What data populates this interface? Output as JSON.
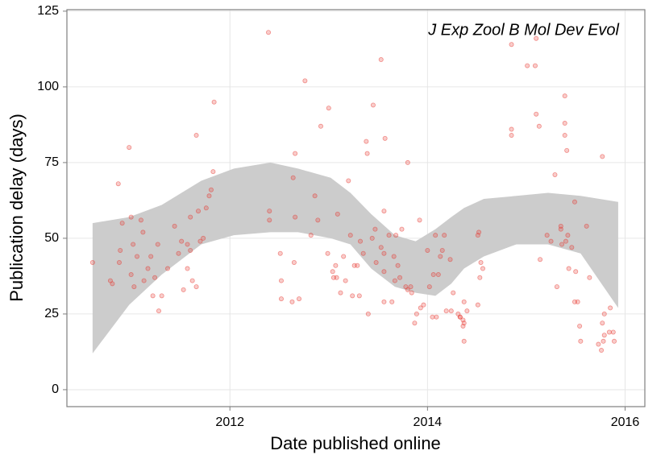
{
  "chart_data": {
    "type": "scatter",
    "annotation": "J Exp Zool B Mol Dev Evol",
    "x_label": "Date published online",
    "y_label": "Publication delay (days)",
    "xlim": [
      2010.35,
      2016.2
    ],
    "ylim": [
      -5.6,
      125.5
    ],
    "xticks": [
      2012,
      2014,
      2016
    ],
    "yticks": [
      0,
      25,
      50,
      75,
      100,
      125
    ],
    "grid": true,
    "color": "#e8342c",
    "point_alpha": 0.25,
    "x": [
      2010.61,
      2010.79,
      2010.81,
      2010.87,
      2010.89,
      2010.91,
      2010.88,
      2010.98,
      2011.0,
      2011.02,
      2011.0,
      2011.03,
      2011.06,
      2011.1,
      2011.12,
      2011.13,
      2011.17,
      2011.2,
      2011.22,
      2011.24,
      2011.27,
      2011.28,
      2011.31,
      2011.37,
      2011.44,
      2011.48,
      2011.51,
      2011.53,
      2011.57,
      2011.57,
      2011.6,
      2011.6,
      2011.62,
      2011.66,
      2011.66,
      2011.68,
      2011.7,
      2011.73,
      2011.76,
      2011.79,
      2011.81,
      2011.83,
      2011.84,
      2012.39,
      2012.4,
      2012.4,
      2012.51,
      2012.52,
      2012.52,
      2012.64,
      2012.65,
      2012.66,
      2012.66,
      2012.63,
      2012.7,
      2012.76,
      2012.82,
      2012.86,
      2012.89,
      2012.92,
      2012.99,
      2013.0,
      2013.04,
      2013.05,
      2013.07,
      2013.08,
      2013.09,
      2013.12,
      2013.15,
      2013.17,
      2013.2,
      2013.22,
      2013.24,
      2013.26,
      2013.29,
      2013.31,
      2013.32,
      2013.35,
      2013.38,
      2013.39,
      2013.4,
      2013.44,
      2013.45,
      2013.47,
      2013.48,
      2013.53,
      2013.53,
      2013.56,
      2013.56,
      2013.57,
      2013.56,
      2013.56,
      2013.61,
      2013.64,
      2013.66,
      2013.67,
      2013.68,
      2013.7,
      2013.72,
      2013.74,
      2013.78,
      2013.8,
      2013.8,
      2013.83,
      2013.84,
      2013.87,
      2013.89,
      2013.92,
      2013.93,
      2013.96,
      2014.0,
      2014.02,
      2014.05,
      2014.06,
      2014.08,
      2014.09,
      2014.11,
      2014.13,
      2014.15,
      2014.17,
      2014.19,
      2014.23,
      2014.24,
      2014.26,
      2014.31,
      2014.33,
      2014.33,
      2014.36,
      2014.36,
      2014.37,
      2014.37,
      2014.37,
      2014.4,
      2014.51,
      2014.51,
      2014.52,
      2014.53,
      2014.54,
      2014.56,
      2014.85,
      2014.85,
      2014.85,
      2015.01,
      2015.09,
      2015.1,
      2015.1,
      2015.13,
      2015.14,
      2015.21,
      2015.25,
      2015.29,
      2015.31,
      2015.35,
      2015.35,
      2015.36,
      2015.39,
      2015.39,
      2015.39,
      2015.41,
      2015.4,
      2015.42,
      2015.43,
      2015.46,
      2015.49,
      2015.49,
      2015.5,
      2015.52,
      2015.54,
      2015.55,
      2015.61,
      2015.64,
      2015.73,
      2015.76,
      2015.77,
      2015.77,
      2015.78,
      2015.79,
      2015.79,
      2015.84,
      2015.85,
      2015.88,
      2015.89
    ],
    "values": [
      42,
      36,
      35,
      68,
      46,
      55,
      42,
      80,
      57,
      48,
      38,
      34,
      44,
      56,
      52,
      36,
      40,
      44,
      31,
      37,
      48,
      26,
      31,
      40,
      54,
      45,
      49,
      33,
      48,
      40,
      57,
      46,
      36,
      34,
      84,
      59,
      49,
      50,
      60,
      64,
      66,
      72,
      95,
      118,
      59,
      56,
      45,
      36,
      30,
      70,
      42,
      78,
      57,
      29,
      30,
      102,
      51,
      64,
      56,
      87,
      45,
      93,
      39,
      37,
      41,
      37,
      58,
      32,
      44,
      36,
      69,
      51,
      31,
      41,
      41,
      31,
      49,
      45,
      82,
      78,
      25,
      50,
      94,
      53,
      42,
      109,
      47,
      45,
      39,
      83,
      59,
      29,
      51,
      29,
      44,
      36,
      51,
      41,
      37,
      53,
      34,
      33,
      75,
      34,
      32,
      22,
      25,
      56,
      27,
      28,
      46,
      34,
      24,
      38,
      51,
      24,
      38,
      44,
      46,
      51,
      26,
      43,
      26,
      32,
      25,
      24,
      24,
      21,
      23,
      29,
      22,
      16,
      26,
      28,
      51,
      52,
      37,
      42,
      40,
      114,
      86,
      84,
      107,
      107,
      116,
      91,
      87,
      43,
      51,
      49,
      71,
      34,
      54,
      53,
      48,
      97,
      88,
      84,
      79,
      49,
      51,
      40,
      47,
      62,
      29,
      39,
      29,
      21,
      16,
      54,
      37,
      15,
      13,
      77,
      22,
      16,
      18,
      25,
      19,
      27,
      19,
      16
    ],
    "ribbon": {
      "color": "#cccccc",
      "x": [
        2010.61,
        2010.98,
        2011.31,
        2011.71,
        2012.04,
        2012.41,
        2012.69,
        2013.02,
        2013.22,
        2013.43,
        2013.67,
        2013.88,
        2014.08,
        2014.24,
        2014.37,
        2014.57,
        2014.9,
        2015.22,
        2015.55,
        2015.93
      ],
      "upper": [
        55,
        57,
        61,
        69,
        73,
        75,
        73,
        70,
        65,
        58,
        51,
        49,
        53,
        57,
        60,
        63,
        64,
        65,
        64,
        62
      ],
      "lower": [
        12,
        28,
        38,
        48,
        51,
        52,
        52,
        50,
        48,
        40,
        34,
        32,
        31,
        35,
        40,
        44,
        48,
        48,
        45,
        27
      ]
    }
  }
}
